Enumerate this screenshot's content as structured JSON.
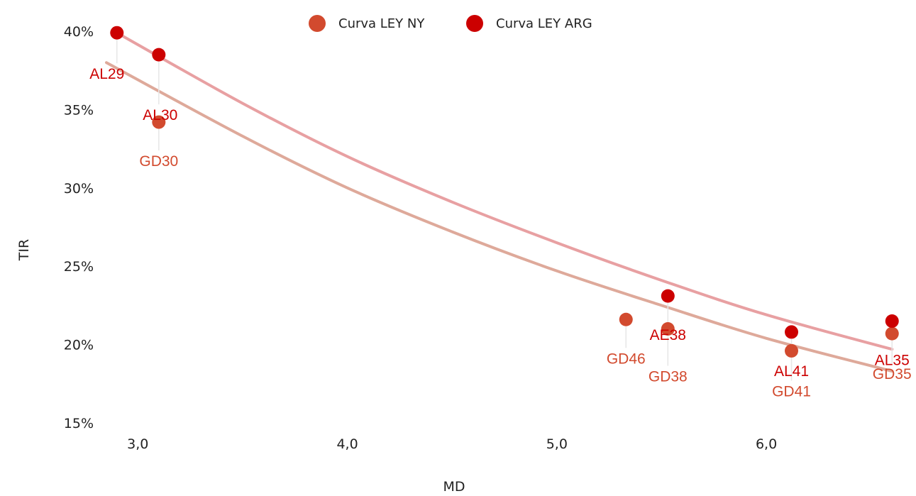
{
  "chart_data": {
    "type": "scatter",
    "xlabel": "MD",
    "ylabel": "TIR",
    "xlim": [
      2.85,
      6.65
    ],
    "ylim": [
      15,
      40
    ],
    "x_ticks": [
      {
        "value": 3.0,
        "label": "3,0"
      },
      {
        "value": 4.0,
        "label": "4,0"
      },
      {
        "value": 5.0,
        "label": "5,0"
      },
      {
        "value": 6.0,
        "label": "6,0"
      }
    ],
    "y_ticks": [
      {
        "value": 15,
        "label": "15%"
      },
      {
        "value": 20,
        "label": "20%"
      },
      {
        "value": 25,
        "label": "25%"
      },
      {
        "value": 30,
        "label": "30%"
      },
      {
        "value": 35,
        "label": "35%"
      },
      {
        "value": 40,
        "label": "40%"
      }
    ],
    "legend_position": "top-center",
    "grid": false,
    "series": [
      {
        "name": "Curva LEY NY",
        "color": "#d24a2e",
        "curve_color": "#dea99a",
        "points": [
          {
            "label": "GD30",
            "x": 3.1,
            "y": 34.2
          },
          {
            "label": "GD46",
            "x": 5.33,
            "y": 21.6
          },
          {
            "label": "GD38",
            "x": 5.53,
            "y": 21.0
          },
          {
            "label": "GD41",
            "x": 6.12,
            "y": 19.6
          },
          {
            "label": "GD35",
            "x": 6.6,
            "y": 20.7
          }
        ],
        "trend": [
          {
            "x": 2.85,
            "y": 38.0
          },
          {
            "x": 3.5,
            "y": 33.3
          },
          {
            "x": 4.0,
            "y": 30.0
          },
          {
            "x": 4.5,
            "y": 27.2
          },
          {
            "x": 5.0,
            "y": 24.7
          },
          {
            "x": 5.5,
            "y": 22.5
          },
          {
            "x": 6.0,
            "y": 20.4
          },
          {
            "x": 6.6,
            "y": 18.3
          }
        ]
      },
      {
        "name": "Curva LEY ARG",
        "color": "#cc0000",
        "curve_color": "#e8a0a2",
        "points": [
          {
            "label": "AL29",
            "x": 2.9,
            "y": 39.9
          },
          {
            "label": "AL30",
            "x": 3.1,
            "y": 38.5
          },
          {
            "label": "AE38",
            "x": 5.53,
            "y": 23.1
          },
          {
            "label": "AL41",
            "x": 6.12,
            "y": 20.8
          },
          {
            "label": "AL35",
            "x": 6.6,
            "y": 21.5
          }
        ],
        "trend": [
          {
            "x": 2.9,
            "y": 39.9
          },
          {
            "x": 3.5,
            "y": 35.4
          },
          {
            "x": 4.0,
            "y": 32.0
          },
          {
            "x": 4.5,
            "y": 29.1
          },
          {
            "x": 5.0,
            "y": 26.5
          },
          {
            "x": 5.5,
            "y": 24.1
          },
          {
            "x": 6.0,
            "y": 21.9
          },
          {
            "x": 6.6,
            "y": 19.7
          }
        ]
      }
    ]
  }
}
